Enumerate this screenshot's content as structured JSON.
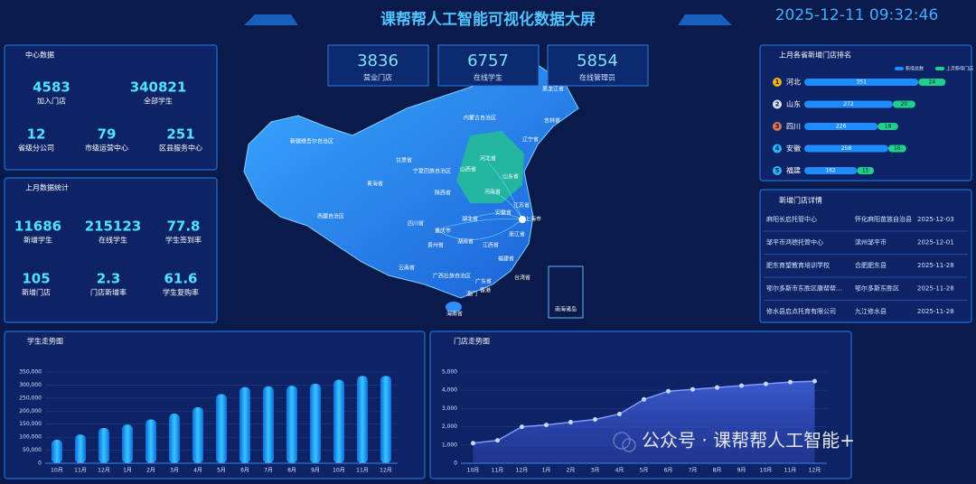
{
  "header": {
    "title": "课帮帮人工智能可视化数据大屏",
    "datetime": "2025-12-11 09:32:46"
  },
  "top_stats": [
    {
      "value": 3836,
      "label": "营业门店"
    },
    {
      "value": 6757,
      "label": "在线学生"
    },
    {
      "value": 5854,
      "label": "在线管理员"
    }
  ],
  "center_data": {
    "title": "中心数据",
    "items": [
      {
        "value": 4583,
        "label": "加入门店"
      },
      {
        "value": 340821,
        "label": "全部学生"
      },
      {
        "value": 12,
        "label": "省级分公司"
      },
      {
        "value": 79,
        "label": "市级运营中心"
      },
      {
        "value": 251,
        "label": "区县服务中心"
      }
    ]
  },
  "last_month_stats": {
    "title": "上月数据统计",
    "items": [
      {
        "value": 11686,
        "label": "新增学生"
      },
      {
        "value": 215123,
        "label": "在线学生"
      },
      {
        "value": 77.8,
        "label": "学生签到率"
      },
      {
        "value": 105,
        "label": "新增门店"
      },
      {
        "value": 2.3,
        "label": "门店新增率"
      },
      {
        "value": 61.6,
        "label": "学生复购率"
      }
    ]
  },
  "map": {
    "regions": [
      "新疆维吾尔自治区",
      "西藏自治区",
      "青海省",
      "甘肃省",
      "内蒙古自治区",
      "黑龙江省",
      "吉林省",
      "辽宁省",
      "河北省",
      "山西省",
      "宁夏回族自治区",
      "陕西省",
      "河南省",
      "山东省",
      "四川省",
      "重庆市",
      "湖北省",
      "安徽省",
      "江苏省",
      "上海市",
      "浙江省",
      "湖南省",
      "江西省",
      "贵州省",
      "云南省",
      "广西壮族自治区",
      "广东省",
      "福建省",
      "台湾省",
      "香港",
      "澳门",
      "海南省",
      "南海诸岛"
    ]
  },
  "province_ranking": {
    "title": "上月各省新增门店排名",
    "legend": [
      "新增总数",
      "上月新增门店"
    ],
    "rows": [
      {
        "rank": 1,
        "province": "河北",
        "total": 351,
        "new": 24
      },
      {
        "rank": 2,
        "province": "山东",
        "total": 272,
        "new": 20
      },
      {
        "rank": 3,
        "province": "四川",
        "total": 226,
        "new": 18
      },
      {
        "rank": 4,
        "province": "安徽",
        "total": 258,
        "new": 16
      },
      {
        "rank": 5,
        "province": "福建",
        "total": 162,
        "new": 15
      }
    ]
  },
  "store_details": {
    "title": "新增门店详情",
    "rows": [
      [
        "麻阳长启托管中心",
        "怀化麻阳苗族自治县",
        "2025-12-03"
      ],
      [
        "邹平市鸿德托管中心",
        "滨州邹平市",
        "2025-12-01"
      ],
      [
        "肥东育望教育培训学校",
        "合肥肥东县",
        "2025-11-28"
      ],
      [
        "鄂尔多斯市东胜区康帮帮…",
        "鄂尔多斯东胜区",
        "2025-11-28"
      ],
      [
        "修水县启点托育有限公司",
        "九江修水县",
        "2025-11-28"
      ]
    ]
  },
  "chart_data": [
    {
      "type": "bar",
      "title": "学生走势图",
      "categories": [
        "10月",
        "11月",
        "12月",
        "1月",
        "2月",
        "3月",
        "4月",
        "5月",
        "6月",
        "7月",
        "8月",
        "9月",
        "10月",
        "11月",
        "12月"
      ],
      "values": [
        90000,
        110000,
        135000,
        148000,
        168000,
        190000,
        215000,
        265000,
        292000,
        295000,
        297000,
        305000,
        320000,
        335000,
        335000
      ],
      "color": "#1e9bff",
      "ylim": [
        0,
        350000
      ],
      "yticks": [
        0,
        {
          "value": 50000,
          "label": "50,000"
        },
        {
          "value": 100000,
          "label": "100,000"
        },
        {
          "value": 150000,
          "label": "150,000"
        },
        {
          "value": 200000,
          "label": "200,000"
        },
        {
          "value": 250000,
          "label": "250,000"
        },
        {
          "value": 300000,
          "label": "300,000"
        },
        {
          "value": 350000,
          "label": "350,000"
        }
      ]
    },
    {
      "type": "line",
      "title": "门店走势图",
      "categories": [
        "10月",
        "11月",
        "12月",
        "1月",
        "2月",
        "3月",
        "4月",
        "5月",
        "6月",
        "7月",
        "8月",
        "9月",
        "10月",
        "11月",
        "12月"
      ],
      "values": [
        1100,
        1250,
        2000,
        2100,
        2250,
        2400,
        2700,
        3500,
        3950,
        4050,
        4150,
        4250,
        4350,
        4450,
        4500
      ],
      "color": "#7f9bff",
      "ylim": [
        0,
        5000
      ],
      "yticks": [
        0,
        {
          "value": 1000,
          "label": "1,000"
        },
        {
          "value": 2000,
          "label": "2,000"
        },
        {
          "value": 3000,
          "label": "3,000"
        },
        {
          "value": 4000,
          "label": "4,000"
        },
        {
          "value": 5000,
          "label": "5,000"
        }
      ]
    }
  ],
  "watermark": "公众号 · 课帮帮人工智能+"
}
